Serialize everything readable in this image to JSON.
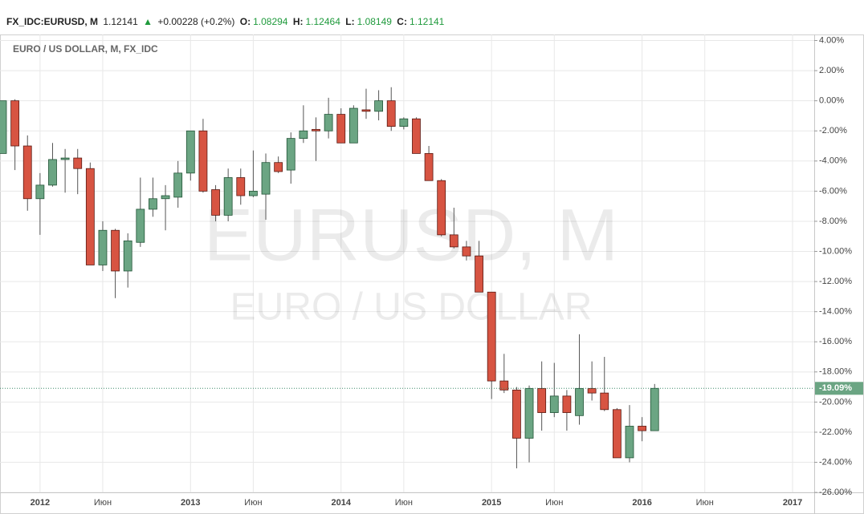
{
  "header": {
    "symbol": "FX_IDC:EURUSD, M",
    "price": "1.12141",
    "change": "+0.00228 (+0.2%)",
    "o_label": "O:",
    "open": "1.08294",
    "h_label": "H:",
    "high": "1.12464",
    "l_label": "L:",
    "low": "1.08149",
    "c_label": "C:",
    "close": "1.12141"
  },
  "chart_data": {
    "type": "candlestick",
    "label": "EURO / US DOLLAR, M, FX_IDC",
    "watermark": "EURUSD, M",
    "watermark_subtitle": "EURO / US DOLLAR",
    "last_price_label": "-19.09%",
    "categories": [
      null,
      null,
      null,
      "2012",
      null,
      null,
      null,
      null,
      "Июн",
      null,
      null,
      null,
      null,
      null,
      null,
      "2013",
      null,
      null,
      null,
      null,
      "Июн",
      null,
      null,
      null,
      null,
      null,
      null,
      "2014",
      null,
      null,
      null,
      null,
      "Июн",
      null,
      null,
      null,
      null,
      null,
      null,
      "2015",
      null,
      null,
      null,
      null,
      "Июн",
      null,
      null,
      null,
      null,
      null,
      null,
      "2016",
      null,
      null,
      null,
      null,
      "Июн",
      null,
      null,
      null,
      null,
      null,
      null,
      "2017",
      null
    ],
    "open": [
      -3.5,
      0,
      -3.0,
      -6.5,
      -5.6,
      -3.9,
      -3.8,
      -4.5,
      -10.9,
      -8.6,
      -11.3,
      -9.4,
      -7.2,
      -6.5,
      -6.4,
      -4.8,
      -2.0,
      -5.9,
      -7.6,
      -5.1,
      -6.3,
      -6.2,
      -4.1,
      -4.6,
      -2.5,
      -1.9,
      -2.0,
      -0.9,
      -2.8,
      -0.6,
      -0.7,
      0,
      -1.7,
      -1.2,
      -3.5,
      -5.3,
      -8.9,
      -9.7,
      -10.3,
      -12.7,
      -18.6,
      -19.2,
      -22.4,
      -19.1,
      -20.7,
      -19.6,
      -20.9,
      -19.1,
      -19.4,
      -20.5,
      -23.7,
      -21.6,
      -21.9,
      null,
      null,
      null,
      null,
      null,
      null,
      null,
      null,
      null,
      null,
      null,
      null
    ],
    "high": [
      0,
      0.1,
      -2.3,
      -4.8,
      -2.8,
      -3.2,
      -3.2,
      -4.1,
      -8.0,
      -8.5,
      -8.8,
      -5.1,
      -5.1,
      -5.6,
      -4.0,
      -2.0,
      -1.2,
      -5.6,
      -4.5,
      -4.5,
      -3.3,
      -3.5,
      -3.7,
      -2.1,
      -0.3,
      -1.1,
      0.2,
      -0.5,
      -0.3,
      0.8,
      0.7,
      0.9,
      -1.1,
      -1.1,
      -3.0,
      -5.2,
      -7.1,
      -9.3,
      -9.3,
      -12.7,
      -16.8,
      -19.0,
      -18.9,
      -17.3,
      -17.4,
      -19.2,
      -15.5,
      -17.3,
      -17.0,
      -20.4,
      -20.2,
      -21.0,
      -18.8,
      null,
      null,
      null,
      null,
      null,
      null,
      null,
      null,
      null,
      null,
      null,
      null
    ],
    "low": [
      -3.5,
      -4.6,
      -7.3,
      -8.9,
      -5.7,
      -6.1,
      -6.2,
      -10.9,
      -11.3,
      -13.1,
      -12.4,
      -9.7,
      -7.7,
      -8.6,
      -7.1,
      -5.3,
      -6.1,
      -8.0,
      -8.0,
      -6.9,
      -6.4,
      -7.9,
      -4.8,
      -5.5,
      -2.8,
      -4.0,
      -2.5,
      -2.8,
      -2.8,
      -1.2,
      -1.3,
      -2.0,
      -1.9,
      -3.5,
      -5.3,
      -9.0,
      -9.8,
      -10.6,
      -12.7,
      -19.8,
      -19.4,
      -24.4,
      -24.0,
      -21.9,
      -21.0,
      -21.9,
      -21.5,
      -19.9,
      -20.6,
      -23.7,
      -24.0,
      -22.6,
      -21.9,
      null,
      null,
      null,
      null,
      null,
      null,
      null,
      null,
      null,
      null,
      null,
      null
    ],
    "close": [
      0,
      -3.0,
      -6.5,
      -5.6,
      -3.9,
      -3.8,
      -4.5,
      -10.9,
      -8.6,
      -11.3,
      -9.3,
      -7.2,
      -6.5,
      -6.3,
      -4.8,
      -2.0,
      -6.0,
      -7.6,
      -5.1,
      -6.3,
      -6.0,
      -4.1,
      -4.7,
      -2.5,
      -2.0,
      -2.0,
      -0.9,
      -2.8,
      -0.5,
      -0.7,
      0,
      -1.7,
      -1.2,
      -3.5,
      -5.3,
      -8.9,
      -9.7,
      -10.3,
      -12.7,
      -18.6,
      -19.2,
      -22.4,
      -19.1,
      -20.7,
      -19.6,
      -20.7,
      -19.1,
      -19.4,
      -20.5,
      -23.7,
      -21.6,
      -21.9,
      -19.09,
      null,
      null,
      null,
      null,
      null,
      null,
      null,
      null,
      null,
      null,
      null,
      null
    ],
    "up_color": "#6ba583",
    "down_color": "#d75442",
    "ylim": [
      -26.1,
      4.4
    ],
    "yticks": [
      {
        "value": 4,
        "label": "4.00%"
      },
      {
        "value": 2,
        "label": "2.00%"
      },
      {
        "value": 0,
        "label": "0.00%"
      },
      {
        "value": -2,
        "label": "-2.00%"
      },
      {
        "value": -4,
        "label": "-4.00%"
      },
      {
        "value": -6,
        "label": "-6.00%"
      },
      {
        "value": -8,
        "label": "-8.00%"
      },
      {
        "value": -10,
        "label": "-10.00%"
      },
      {
        "value": -12,
        "label": "-12.00%"
      },
      {
        "value": -14,
        "label": "-14.00%"
      },
      {
        "value": -16,
        "label": "-16.00%"
      },
      {
        "value": -18,
        "label": "-18.00%"
      },
      {
        "value": -20,
        "label": "-20.00%"
      },
      {
        "value": -22,
        "label": "-22.00%"
      },
      {
        "value": -24,
        "label": "-24.00%"
      },
      {
        "value": -26,
        "label": "-26.00%"
      }
    ],
    "grid": true
  }
}
